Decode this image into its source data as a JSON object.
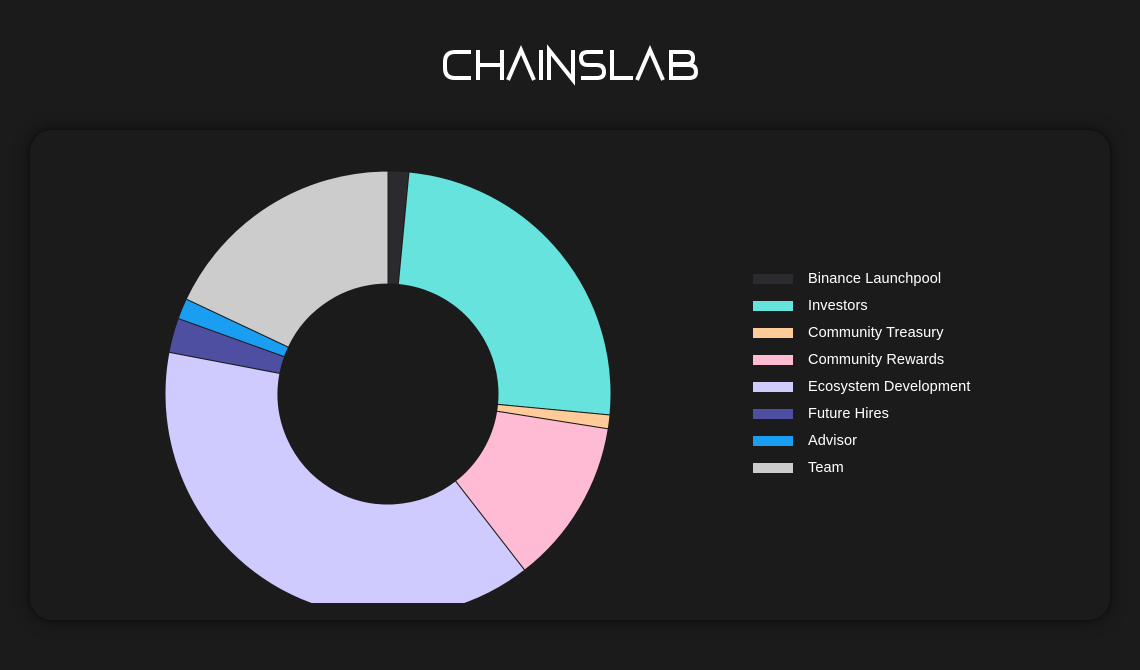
{
  "brand": {
    "name": "CHAINSLAB"
  },
  "chart_data": {
    "type": "pie",
    "categories": [
      "Binance Launchpool",
      "Investors",
      "Community Treasury",
      "Community Rewards",
      "Ecosystem Development",
      "Future Hires",
      "Advisor",
      "Team"
    ],
    "values": [
      1.5,
      25,
      1,
      12,
      38.5,
      2.5,
      1.5,
      18
    ],
    "colors": [
      "#2b2a2f",
      "#66e3dc",
      "#ffcc99",
      "#ffbbd3",
      "#d0cbff",
      "#4e4fa0",
      "#1a9ef2",
      "#cccccc"
    ],
    "legend_position": "right",
    "donut": true
  }
}
